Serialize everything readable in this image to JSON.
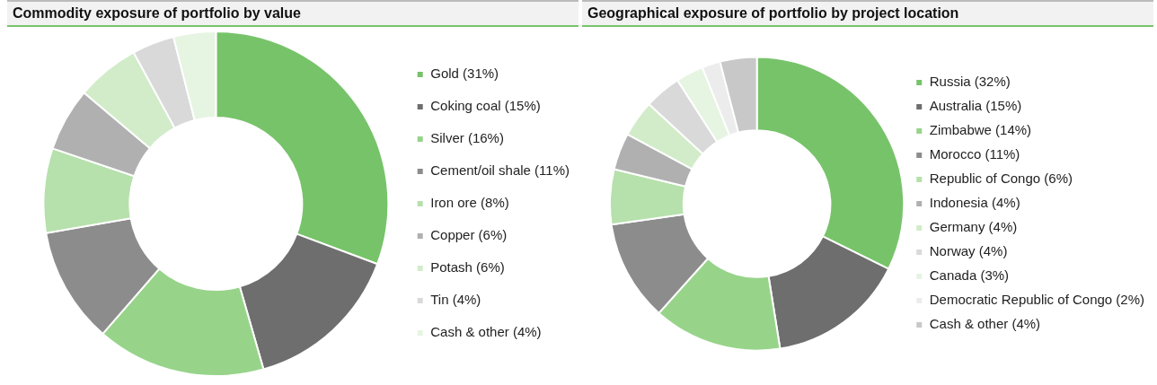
{
  "chart_data": [
    {
      "type": "donut",
      "title": "Commodity exposure of portfolio by value",
      "legend": "right",
      "categories": [
        "Gold (31%)",
        "Coking coal (15%)",
        "Silver (16%)",
        "Cement/oil shale (11%)",
        "Iron ore (8%)",
        "Copper (6%)",
        "Potash (6%)",
        "Tin (4%)",
        "Cash & other (4%)"
      ],
      "values": [
        31,
        15,
        16,
        11,
        8,
        6,
        6,
        4,
        4
      ],
      "colors": [
        "#77c36a",
        "#6e6e6e",
        "#97d48a",
        "#8c8c8c",
        "#b6e0ac",
        "#b0b0b0",
        "#d2ecca",
        "#d9d9d9",
        "#e6f4e2"
      ]
    },
    {
      "type": "donut",
      "title": "Geographical exposure of portfolio by project location",
      "legend": "right",
      "categories": [
        "Russia (32%)",
        "Australia (15%)",
        "Zimbabwe (14%)",
        "Morocco (11%)",
        "Republic of Congo (6%)",
        "Indonesia (4%)",
        "Germany (4%)",
        "Norway (4%)",
        "Canada (3%)",
        "Democratic Republic of Congo (2%)",
        "Cash & other (4%)"
      ],
      "values": [
        32,
        15,
        14,
        11,
        6,
        4,
        4,
        4,
        3,
        2,
        4
      ],
      "colors": [
        "#77c36a",
        "#6e6e6e",
        "#97d48a",
        "#8c8c8c",
        "#b6e0ac",
        "#b0b0b0",
        "#d2ecca",
        "#d9d9d9",
        "#e6f4e2",
        "#ececec",
        "#c8c8c8"
      ]
    }
  ]
}
